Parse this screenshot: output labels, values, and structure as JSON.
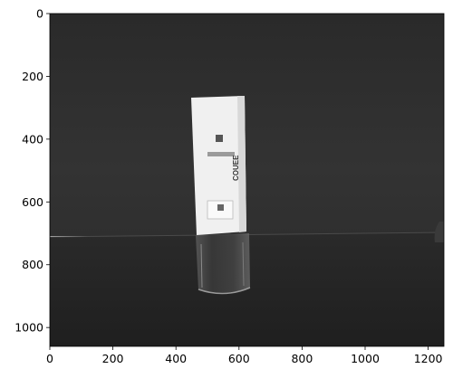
{
  "x_axis": {
    "ticks": [
      {
        "value": 0,
        "label": "0"
      },
      {
        "value": 200,
        "label": "200"
      },
      {
        "value": 400,
        "label": "400"
      },
      {
        "value": 600,
        "label": "600"
      },
      {
        "value": 800,
        "label": "800"
      },
      {
        "value": 1000,
        "label": "1000"
      },
      {
        "value": 1200,
        "label": "1200"
      }
    ],
    "range": [
      0,
      1250
    ]
  },
  "y_axis": {
    "ticks": [
      {
        "value": 0,
        "label": "0"
      },
      {
        "value": 200,
        "label": "200"
      },
      {
        "value": 400,
        "label": "400"
      },
      {
        "value": 600,
        "label": "600"
      },
      {
        "value": 800,
        "label": "800"
      },
      {
        "value": 1000,
        "label": "1000"
      }
    ],
    "range": [
      1060,
      0
    ],
    "inverted": true
  },
  "photo": {
    "description_colors": {
      "wall": "#2f2f2f",
      "floor": "#262626",
      "box": "#f2f2f2"
    },
    "box_text": "COUEE"
  }
}
